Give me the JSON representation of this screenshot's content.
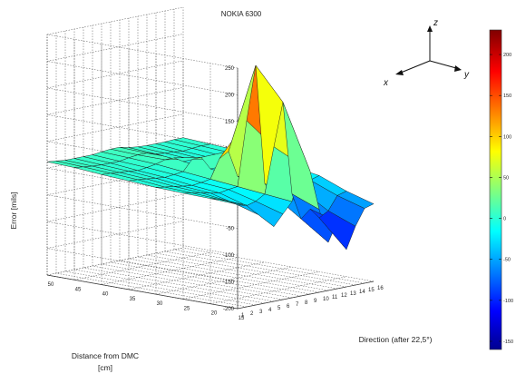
{
  "chart_data": {
    "type": "surface3d",
    "title": "NOKIA 6300",
    "zlabel": "Error [mils]",
    "ylabel": "Distance from DMC [cm]",
    "ylabel_line1": "Distance from DMC",
    "ylabel_line2": "[cm]",
    "xlabel": "Direction (after 22,5°)",
    "zlim": [
      -200,
      250
    ],
    "z_ticks": [
      "250",
      "200",
      "150",
      "100",
      "50",
      "0",
      "-50",
      "-100",
      "-150",
      "-200"
    ],
    "distance_ticks": [
      "50",
      "45",
      "40",
      "35",
      "30",
      "25",
      "20",
      "15"
    ],
    "direction_ticks": [
      "1",
      "2",
      "3",
      "4",
      "5",
      "6",
      "7",
      "8",
      "9",
      "10",
      "11",
      "12",
      "13",
      "14",
      "15",
      "16"
    ],
    "directions": [
      1,
      2,
      3,
      4,
      5,
      6,
      7,
      8,
      9,
      10,
      11,
      12,
      13,
      14,
      15,
      16
    ],
    "distances": [
      15,
      20,
      25,
      30,
      35,
      40,
      45,
      50
    ],
    "z_values": [
      [
        -5,
        -10,
        -20,
        -40,
        -60,
        -40,
        -20,
        45,
        30,
        -45,
        -110,
        -75,
        -130,
        -90,
        -60,
        -55
      ],
      [
        -3,
        -8,
        -15,
        -25,
        -30,
        -25,
        -15,
        70,
        150,
        -25,
        -75,
        -60,
        -80,
        -70,
        -45,
        -40
      ],
      [
        -2,
        -5,
        -8,
        -12,
        -15,
        -12,
        -10,
        110,
        210,
        -15,
        -40,
        -40,
        -50,
        -40,
        -25,
        -20
      ],
      [
        0,
        -3,
        -5,
        -8,
        -10,
        -8,
        -5,
        30,
        40,
        -10,
        -15,
        -20,
        -25,
        -20,
        -15,
        -12
      ],
      [
        3,
        2,
        0,
        -2,
        -4,
        -2,
        0,
        20,
        20,
        -5,
        -5,
        -8,
        -10,
        -8,
        -5,
        -5
      ],
      [
        6,
        5,
        3,
        2,
        0,
        2,
        5,
        10,
        10,
        0,
        0,
        -2,
        -3,
        -2,
        0,
        0
      ],
      [
        10,
        8,
        6,
        5,
        5,
        5,
        8,
        10,
        10,
        5,
        3,
        2,
        0,
        2,
        3,
        3
      ],
      [
        12,
        10,
        8,
        8,
        8,
        8,
        10,
        12,
        12,
        8,
        6,
        5,
        5,
        5,
        6,
        6
      ]
    ],
    "colorbar": {
      "ticks": [
        "200",
        "150",
        "100",
        "50",
        "0",
        "-50",
        "-100",
        "-150"
      ],
      "range": [
        -160,
        230
      ]
    },
    "grid": true,
    "axis_indicator": {
      "x": "x",
      "y": "y",
      "z": "z"
    }
  }
}
